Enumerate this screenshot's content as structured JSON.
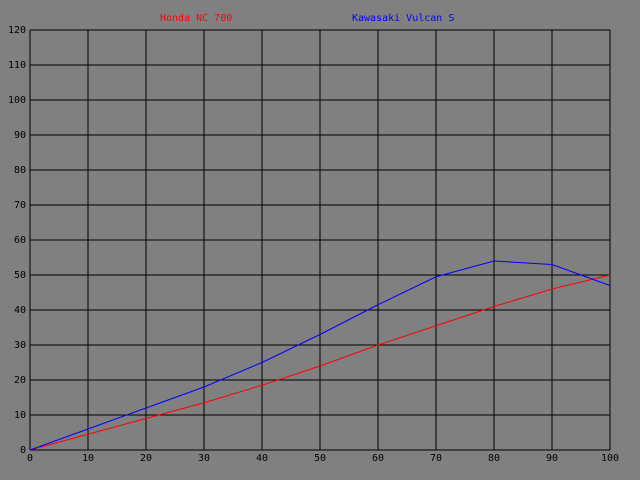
{
  "chart_data": {
    "type": "line",
    "x": [
      0,
      10,
      20,
      30,
      40,
      50,
      60,
      70,
      80,
      90,
      100
    ],
    "series": [
      {
        "name": "Honda NC 700",
        "color": "#ff0000",
        "values": [
          0,
          4.5,
          9,
          13.5,
          18.5,
          24,
          30,
          35.5,
          41,
          46,
          50
        ]
      },
      {
        "name": "Kawasaki Vulcan S",
        "color": "#0000ff",
        "values": [
          0,
          6,
          12,
          18,
          25,
          33,
          41.5,
          49.5,
          54,
          53,
          47
        ]
      }
    ],
    "xlim": [
      0,
      100
    ],
    "xticks": [
      0,
      10,
      20,
      30,
      40,
      50,
      60,
      70,
      80,
      90,
      100
    ],
    "ylim": [
      0,
      120
    ],
    "yticks": [
      0,
      10,
      20,
      30,
      40,
      50,
      60,
      70,
      80,
      90,
      100,
      110,
      120
    ],
    "grid": true
  }
}
